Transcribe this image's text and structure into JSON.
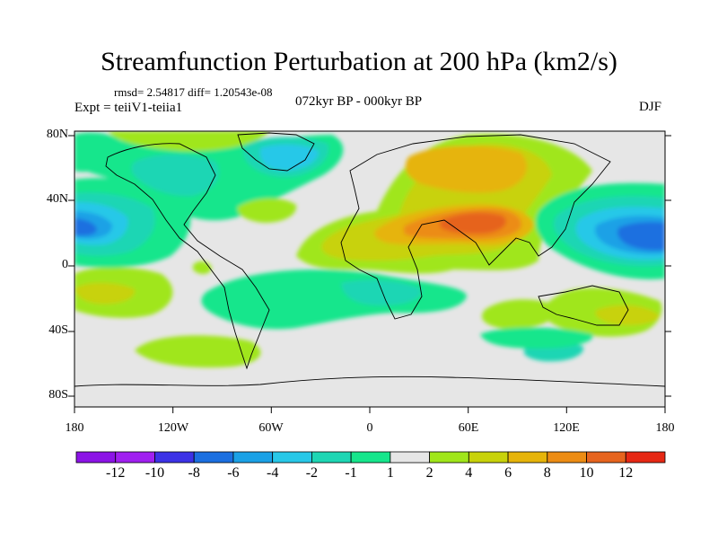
{
  "title": "Streamfunction Perturbation at 200 hPa (km2/s)",
  "stats_line": "rmsd= 2.54817 diff= 1.20543e-08",
  "experiment": "Expt = teiiV1-teiia1",
  "period": "072kyr BP - 000kyr BP",
  "season": "DJF",
  "lat_labels": [
    "80N",
    "40N",
    "0",
    "40S",
    "80S"
  ],
  "lon_labels": [
    "180",
    "120W",
    "60W",
    "0",
    "60E",
    "120E",
    "180"
  ],
  "colorbar": {
    "labels": [
      "-12",
      "-10",
      "-8",
      "-6",
      "-4",
      "-2",
      "-1",
      "1",
      "2",
      "4",
      "6",
      "8",
      "10",
      "12"
    ],
    "colors": [
      "#a020f0",
      "#3c32e6",
      "#1b6fe0",
      "#1aa1e6",
      "#28c8e8",
      "#1ed6b4",
      "#16e68c",
      "#e6e6e6",
      "#a0e61a",
      "#c8d20a",
      "#e6b40a",
      "#ec8c14",
      "#e6641e",
      "#e62814"
    ]
  },
  "field_anomalies": [
    {
      "region": "East Pacific",
      "lon": -180,
      "lat": 18,
      "value": -9
    },
    {
      "region": "West Pacific",
      "lon": 178,
      "lat": 18,
      "value": -9
    },
    {
      "region": "Arabia / South Asia",
      "lon": 65,
      "lat": 25,
      "value": 9
    },
    {
      "region": "Northern Eurasia",
      "lon": 60,
      "lat": 55,
      "value": 5
    },
    {
      "region": "Greenland / North Atlantic",
      "lon": -40,
      "lat": 60,
      "value": -3
    },
    {
      "region": "North America",
      "lon": -100,
      "lat": 48,
      "value": -2
    },
    {
      "region": "South Atlantic",
      "lon": -20,
      "lat": -25,
      "value": -2
    },
    {
      "region": "Australia",
      "lon": 140,
      "lat": -25,
      "value": 3
    },
    {
      "region": "South Pacific",
      "lon": -165,
      "lat": -20,
      "value": 3
    },
    {
      "region": "Southern Ocean",
      "lon": -110,
      "lat": -50,
      "value": 2
    },
    {
      "region": "Indian Ocean south",
      "lon": 80,
      "lat": -35,
      "value": 2
    },
    {
      "region": "Southern Indian Ocean",
      "lon": 100,
      "lat": -55,
      "value": -2
    }
  ]
}
